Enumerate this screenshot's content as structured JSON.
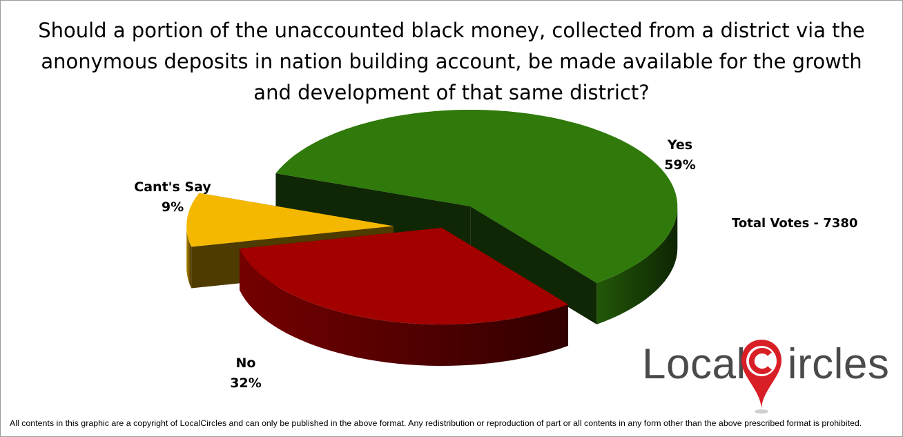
{
  "chart_data": {
    "type": "pie",
    "title": "Should a portion of the unaccounted black money, collected from a district via the anonymous deposits in nation building account, be made available for the growth and development of that same district?",
    "slices": [
      {
        "label": "Yes",
        "value": 59,
        "display": "59%",
        "color": "#2f7a0b",
        "exploded": true
      },
      {
        "label": "No",
        "value": 32,
        "display": "32%",
        "color": "#a30000",
        "exploded": false
      },
      {
        "label": "Cant's Say",
        "value": 9,
        "display": "9%",
        "color": "#f5b800",
        "exploded": true
      }
    ],
    "annotation": "Total Votes - 7380",
    "legend": "none"
  },
  "labels": {
    "yes_name": "Yes",
    "yes_pct": "59%",
    "no_name": "No",
    "no_pct": "32%",
    "cant_name": "Cant's Say",
    "cant_pct": "9%"
  },
  "logo": {
    "text_left": "Local",
    "text_right": "ircles",
    "brand": "LocalCircles",
    "accent": "#d81f26"
  },
  "footer": "All contents in this graphic are a copyright of LocalCircles and can only be published in the above format. Any redistribution or reproduction of part or all contents in any form other than the above prescribed format is prohibited."
}
